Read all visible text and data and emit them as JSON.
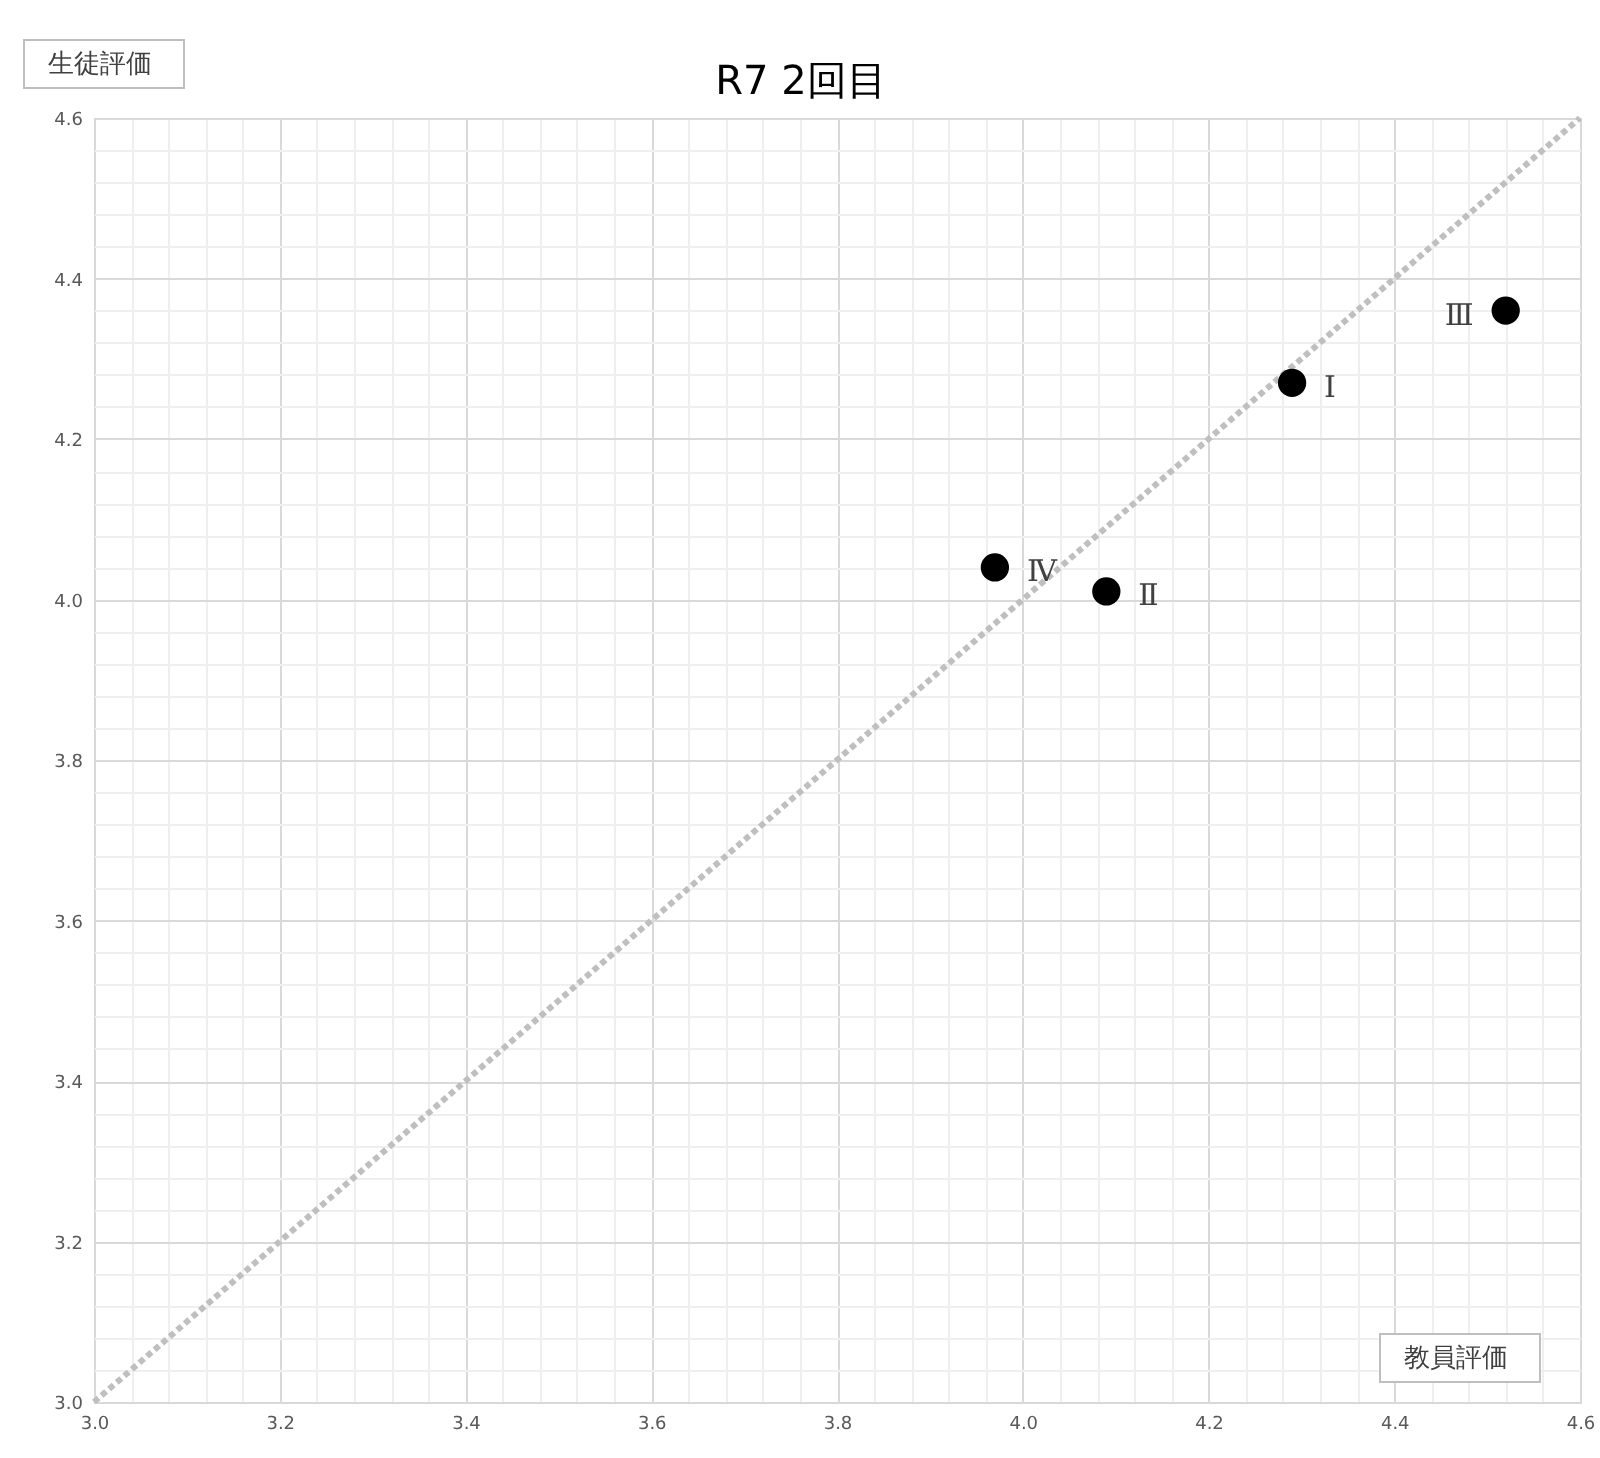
{
  "chart_data": {
    "type": "scatter",
    "title": "R7 2回目",
    "xlabel": "教員評価",
    "ylabel": "生徒評価",
    "xlim": [
      3.0,
      4.6
    ],
    "ylim": [
      3.0,
      4.6
    ],
    "xticks": [
      {
        "value": 3,
        "label": "3.0"
      },
      {
        "value": 3.04,
        "label": null
      },
      {
        "value": 3.08,
        "label": null
      },
      {
        "value": 3.12,
        "label": null
      },
      {
        "value": 3.16,
        "label": null
      },
      {
        "value": 3.2,
        "label": "3.2"
      },
      {
        "value": 3.24,
        "label": null
      },
      {
        "value": 3.28,
        "label": null
      },
      {
        "value": 3.32,
        "label": null
      },
      {
        "value": 3.36,
        "label": null
      },
      {
        "value": 3.4,
        "label": "3.4"
      },
      {
        "value": 3.44,
        "label": null
      },
      {
        "value": 3.48,
        "label": null
      },
      {
        "value": 3.52,
        "label": null
      },
      {
        "value": 3.56,
        "label": null
      },
      {
        "value": 3.6,
        "label": "3.6"
      },
      {
        "value": 3.64,
        "label": null
      },
      {
        "value": 3.68,
        "label": null
      },
      {
        "value": 3.72,
        "label": null
      },
      {
        "value": 3.76,
        "label": null
      },
      {
        "value": 3.8,
        "label": "3.8"
      },
      {
        "value": 3.84,
        "label": null
      },
      {
        "value": 3.88,
        "label": null
      },
      {
        "value": 3.92,
        "label": null
      },
      {
        "value": 3.96,
        "label": null
      },
      {
        "value": 4,
        "label": "4.0"
      },
      {
        "value": 4.04,
        "label": null
      },
      {
        "value": 4.08,
        "label": null
      },
      {
        "value": 4.12,
        "label": null
      },
      {
        "value": 4.16,
        "label": null
      },
      {
        "value": 4.2,
        "label": "4.2"
      },
      {
        "value": 4.24,
        "label": null
      },
      {
        "value": 4.28,
        "label": null
      },
      {
        "value": 4.32,
        "label": null
      },
      {
        "value": 4.36,
        "label": null
      },
      {
        "value": 4.4,
        "label": "4.4"
      },
      {
        "value": 4.44,
        "label": null
      },
      {
        "value": 4.48,
        "label": null
      },
      {
        "value": 4.52,
        "label": null
      },
      {
        "value": 4.56,
        "label": null
      },
      {
        "value": 4.6,
        "label": "4.6"
      }
    ],
    "yticks": [
      {
        "value": 3,
        "label": "3.0"
      },
      {
        "value": 3.04,
        "label": null
      },
      {
        "value": 3.08,
        "label": null
      },
      {
        "value": 3.12,
        "label": null
      },
      {
        "value": 3.16,
        "label": null
      },
      {
        "value": 3.2,
        "label": "3.2"
      },
      {
        "value": 3.24,
        "label": null
      },
      {
        "value": 3.28,
        "label": null
      },
      {
        "value": 3.32,
        "label": null
      },
      {
        "value": 3.36,
        "label": null
      },
      {
        "value": 3.4,
        "label": "3.4"
      },
      {
        "value": 3.44,
        "label": null
      },
      {
        "value": 3.48,
        "label": null
      },
      {
        "value": 3.52,
        "label": null
      },
      {
        "value": 3.56,
        "label": null
      },
      {
        "value": 3.6,
        "label": "3.6"
      },
      {
        "value": 3.64,
        "label": null
      },
      {
        "value": 3.68,
        "label": null
      },
      {
        "value": 3.72,
        "label": null
      },
      {
        "value": 3.76,
        "label": null
      },
      {
        "value": 3.8,
        "label": "3.8"
      },
      {
        "value": 3.84,
        "label": null
      },
      {
        "value": 3.88,
        "label": null
      },
      {
        "value": 3.92,
        "label": null
      },
      {
        "value": 3.96,
        "label": null
      },
      {
        "value": 4,
        "label": "4.0"
      },
      {
        "value": 4.04,
        "label": null
      },
      {
        "value": 4.08,
        "label": null
      },
      {
        "value": 4.12,
        "label": null
      },
      {
        "value": 4.16,
        "label": null
      },
      {
        "value": 4.2,
        "label": "4.2"
      },
      {
        "value": 4.24,
        "label": null
      },
      {
        "value": 4.28,
        "label": null
      },
      {
        "value": 4.32,
        "label": null
      },
      {
        "value": 4.36,
        "label": null
      },
      {
        "value": 4.4,
        "label": "4.4"
      },
      {
        "value": 4.44,
        "label": null
      },
      {
        "value": 4.48,
        "label": null
      },
      {
        "value": 4.52,
        "label": null
      },
      {
        "value": 4.56,
        "label": null
      },
      {
        "value": 4.6,
        "label": "4.6"
      }
    ],
    "grid": true,
    "series": [
      {
        "type": "line",
        "color": "#bfbfbf",
        "line_style": "dotted",
        "x": [
          3.0,
          4.6
        ],
        "values": [
          3.0,
          4.6
        ]
      },
      {
        "type": "scatter",
        "color": "#000000",
        "marker": "circle",
        "x": [
          4.29,
          4.09,
          4.52,
          3.97
        ],
        "values": [
          4.27,
          4.01,
          4.36,
          4.04
        ]
      }
    ],
    "annotations": [
      {
        "text": "Ⅰ",
        "x": 4.29,
        "y": 4.27
      },
      {
        "text": "Ⅱ",
        "x": 4.09,
        "y": 4.01
      },
      {
        "text": "Ⅲ",
        "x": 4.52,
        "y": 4.36
      },
      {
        "text": "Ⅳ",
        "x": 3.97,
        "y": 4.04
      }
    ]
  }
}
